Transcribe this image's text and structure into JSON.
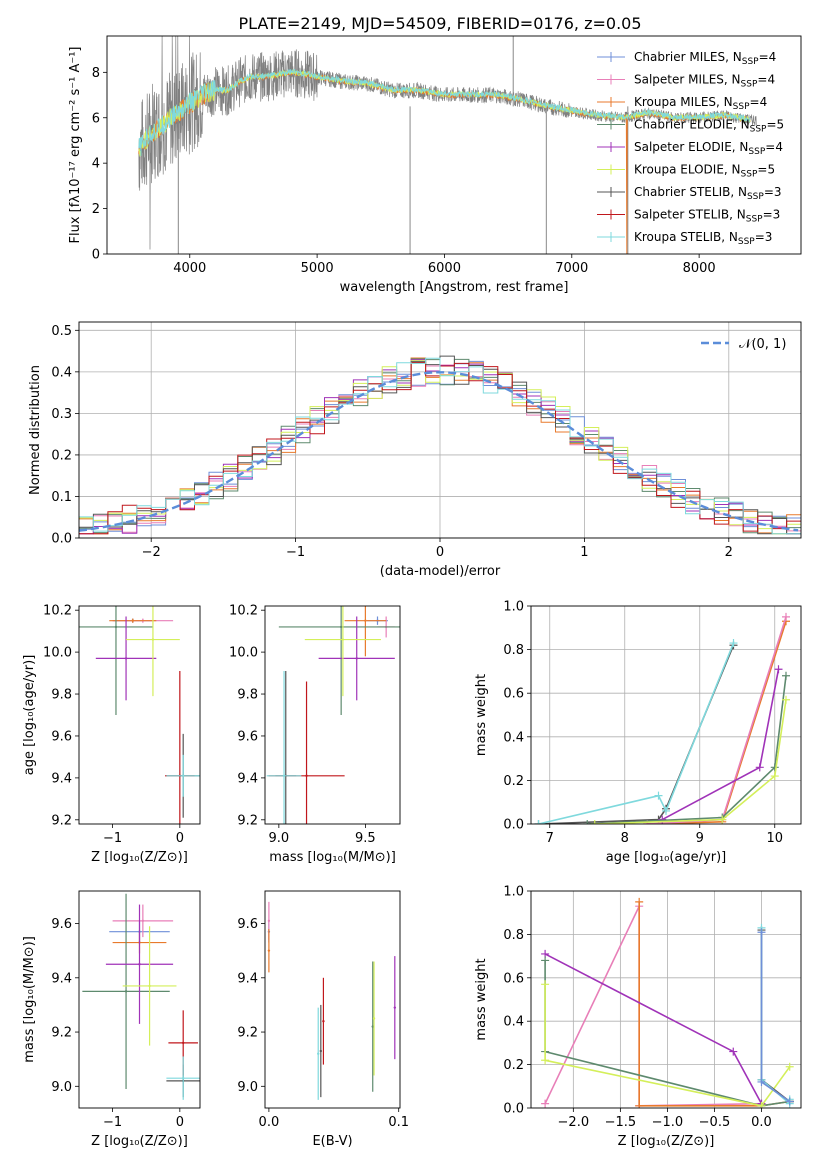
{
  "title": "PLATE=2149, MJD=54509, FIBERID=0176, z=0.05",
  "colors": {
    "grid": "#b0b0b0",
    "spectrum": "#808080",
    "gaussian": "#5b8dd9",
    "series": [
      "#6f8fd8",
      "#e87fb8",
      "#e87a2c",
      "#5e8a6e",
      "#a033b8",
      "#d4ef5a",
      "#555555",
      "#c0171c",
      "#7fd9dd"
    ]
  },
  "legend_spectrum": [
    {
      "name": "Chabrier MILES",
      "sub": "SSP",
      "n": "4",
      "color": "#6f8fd8"
    },
    {
      "name": "Salpeter MILES",
      "sub": "SSP",
      "n": "4",
      "color": "#e87fb8"
    },
    {
      "name": "Kroupa MILES",
      "sub": "SSP",
      "n": "4",
      "color": "#e87a2c"
    },
    {
      "name": "Chabrier ELODIE",
      "sub": "SSP",
      "n": "5",
      "color": "#5e8a6e"
    },
    {
      "name": "Salpeter ELODIE",
      "sub": "SSP",
      "n": "4",
      "color": "#a033b8"
    },
    {
      "name": "Kroupa ELODIE",
      "sub": "SSP",
      "n": "5",
      "color": "#d4ef5a"
    },
    {
      "name": "Chabrier STELIB",
      "sub": "SSP",
      "n": "3",
      "color": "#555555"
    },
    {
      "name": "Salpeter STELIB",
      "sub": "SSP",
      "n": "3",
      "color": "#c0171c"
    },
    {
      "name": "Kroupa STELIB",
      "sub": "SSP",
      "n": "3",
      "color": "#7fd9dd"
    }
  ],
  "legend_hist": "𝒩(0, 1)",
  "chart_data": [
    {
      "type": "line",
      "id": "spectrum",
      "xlabel": "wavelength [Angstrom, rest frame]",
      "ylabel": "Flux [fλ10⁻¹⁷ erg cm⁻² s⁻¹ A⁻¹]",
      "xlim": [
        3350,
        8800
      ],
      "ylim": [
        0,
        9.6
      ],
      "xticks": [
        4000,
        5000,
        6000,
        7000,
        8000
      ],
      "yticks": [
        0,
        2,
        4,
        6,
        8
      ],
      "model_x": [
        3600,
        3700,
        3800,
        3900,
        4000,
        4100,
        4200,
        4300,
        4400,
        4500,
        4600,
        4700,
        4800,
        4900,
        5000,
        5200,
        5400,
        5600,
        5800,
        6000,
        6200,
        6400,
        6600,
        6800,
        7000,
        7200,
        7400,
        7600,
        7800,
        8000,
        8200,
        8400
      ],
      "model_y": [
        4.6,
        5.3,
        5.7,
        6.2,
        6.6,
        7.0,
        7.2,
        7.2,
        7.6,
        7.8,
        7.8,
        7.9,
        8.0,
        7.9,
        7.8,
        7.6,
        7.5,
        7.2,
        7.2,
        7.0,
        7.0,
        7.0,
        6.8,
        6.5,
        6.3,
        6.1,
        6.0,
        6.2,
        6.0,
        6.0,
        6.1,
        5.9
      ]
    },
    {
      "type": "line",
      "id": "residuals",
      "xlabel": "(data-model)/error",
      "ylabel": "Normed distribution",
      "xlim": [
        -2.5,
        2.5
      ],
      "ylim": [
        0,
        0.52
      ],
      "xticks": [
        -2,
        -1,
        0,
        1,
        2
      ],
      "xtick_labels": [
        "−2",
        "−1",
        "0",
        "1",
        "2"
      ],
      "yticks": [
        0,
        0.1,
        0.2,
        0.3,
        0.4,
        0.5
      ],
      "ytick_labels": [
        "0.0",
        "0.1",
        "0.2",
        "0.3",
        "0.4",
        "0.5"
      ],
      "bin_width": 0.1
    },
    {
      "type": "scatter",
      "id": "age_vs_Z",
      "xlabel": "Z [log₁₀(Z/Z⊙)]",
      "ylabel": "age  [log₁₀(age/yr)]",
      "xlim": [
        -1.5,
        0.3
      ],
      "ylim": [
        9.18,
        10.22
      ],
      "xticks": [
        -1,
        0
      ],
      "xtick_labels": [
        "−1",
        "0"
      ],
      "yticks": [
        9.2,
        9.4,
        9.6,
        9.8,
        10.0,
        10.2
      ],
      "ytick_labels": [
        "9.2",
        "9.4",
        "9.6",
        "9.8",
        "10.0",
        "10.2"
      ],
      "points": [
        {
          "x": -0.7,
          "y": 10.15,
          "xe": 0.3,
          "ye": 0.01,
          "c": 0
        },
        {
          "x": -0.55,
          "y": 10.15,
          "xe": 0.45,
          "ye": 0.01,
          "c": 1
        },
        {
          "x": -0.7,
          "y": 10.15,
          "xe": 0.35,
          "ye": 0.01,
          "c": 2
        },
        {
          "x": -0.95,
          "y": 10.12,
          "xe": 0.55,
          "ye": 0.42,
          "c": 3
        },
        {
          "x": -0.8,
          "y": 9.97,
          "xe": 0.45,
          "ye": 0.2,
          "c": 4
        },
        {
          "x": -0.4,
          "y": 10.06,
          "xe": 0.4,
          "ye": 0.27,
          "c": 5
        },
        {
          "x": 0.05,
          "y": 9.41,
          "xe": 0.25,
          "ye": 0.2,
          "c": 6
        },
        {
          "x": 0.0,
          "y": 9.41,
          "xe": 0.22,
          "ye": 0.5,
          "c": 7
        },
        {
          "x": 0.05,
          "y": 9.41,
          "xe": 0.25,
          "ye": 0.1,
          "c": 8
        }
      ]
    },
    {
      "type": "scatter",
      "id": "age_vs_mass",
      "xlabel": "mass [log₁₀(M/M⊙)]",
      "ylabel": "",
      "xlim": [
        8.92,
        9.7
      ],
      "ylim": [
        9.18,
        10.22
      ],
      "xticks": [
        9.0,
        9.5
      ],
      "xtick_labels": [
        "9.0",
        "9.5"
      ],
      "yticks": [
        9.2,
        9.4,
        9.6,
        9.8,
        10.0,
        10.2
      ],
      "ytick_labels": [
        "9.2",
        "9.4",
        "9.6",
        "9.8",
        "10.0",
        "10.2"
      ],
      "points": [
        {
          "x": 9.57,
          "y": 10.15,
          "xe": 0.06,
          "ye": 0.02,
          "c": 0
        },
        {
          "x": 9.62,
          "y": 10.12,
          "xe": 0.05,
          "ye": 0.05,
          "c": 1
        },
        {
          "x": 9.5,
          "y": 10.15,
          "xe": 0.12,
          "ye": 0.17,
          "c": 2
        },
        {
          "x": 9.36,
          "y": 10.12,
          "xe": 0.36,
          "ye": 0.42,
          "c": 3
        },
        {
          "x": 9.45,
          "y": 9.97,
          "xe": 0.22,
          "ye": 0.2,
          "c": 4
        },
        {
          "x": 9.37,
          "y": 10.06,
          "xe": 0.22,
          "ye": 0.27,
          "c": 5
        },
        {
          "x": 9.04,
          "y": 9.41,
          "xe": 0.06,
          "ye": 0.5,
          "c": 6
        },
        {
          "x": 9.16,
          "y": 9.41,
          "xe": 0.22,
          "ye": 0.45,
          "c": 7
        },
        {
          "x": 9.03,
          "y": 9.41,
          "xe": 0.1,
          "ye": 0.5,
          "c": 8
        }
      ]
    },
    {
      "type": "line",
      "id": "massweight_vs_age",
      "xlabel": "age  [log₁₀(age/yr)]",
      "ylabel": "mass weight",
      "xlim": [
        6.75,
        10.35
      ],
      "ylim": [
        0,
        1
      ],
      "xticks": [
        7,
        8,
        9,
        10
      ],
      "xtick_labels": [
        "7",
        "8",
        "9",
        "10"
      ],
      "yticks": [
        0,
        0.2,
        0.4,
        0.6,
        0.8,
        1.0
      ],
      "ytick_labels": [
        "0.0",
        "0.2",
        "0.4",
        "0.6",
        "0.8",
        "1.0"
      ],
      "series": [
        {
          "c": 6,
          "x": [
            6.85,
            8.45,
            8.55,
            9.45
          ],
          "y": [
            0.0,
            0.02,
            0.07,
            0.82
          ]
        },
        {
          "c": 8,
          "x": [
            6.85,
            8.45,
            8.55,
            9.45
          ],
          "y": [
            0.0,
            0.13,
            0.06,
            0.83
          ]
        },
        {
          "c": 2,
          "x": [
            8.3,
            9.3,
            10.15
          ],
          "y": [
            0.0,
            0.01,
            0.93
          ]
        },
        {
          "c": 1,
          "x": [
            8.3,
            9.3,
            10.15
          ],
          "y": [
            0.0,
            0.02,
            0.95
          ]
        },
        {
          "c": 4,
          "x": [
            8.5,
            9.8,
            10.05
          ],
          "y": [
            0.02,
            0.26,
            0.71
          ]
        },
        {
          "c": 3,
          "x": [
            7.5,
            9.3,
            10.0,
            10.15
          ],
          "y": [
            0.0,
            0.03,
            0.26,
            0.68
          ]
        },
        {
          "c": 5,
          "x": [
            7.6,
            9.3,
            10.0,
            10.15
          ],
          "y": [
            0.0,
            0.02,
            0.22,
            0.57
          ]
        }
      ]
    },
    {
      "type": "scatter",
      "id": "mass_vs_Z",
      "xlabel": "Z [log₁₀(Z/Z⊙)]",
      "ylabel": "mass [log₁₀(M/M⊙)]",
      "xlim": [
        -1.5,
        0.3
      ],
      "ylim": [
        8.92,
        9.72
      ],
      "xticks": [
        -1,
        0
      ],
      "xtick_labels": [
        "−1",
        "0"
      ],
      "yticks": [
        9.0,
        9.2,
        9.4,
        9.6
      ],
      "ytick_labels": [
        "9.0",
        "9.2",
        "9.4",
        "9.6"
      ],
      "points": [
        {
          "x": -0.6,
          "y": 9.57,
          "xe": 0.45,
          "ye": 0.04,
          "c": 0
        },
        {
          "x": -0.55,
          "y": 9.61,
          "xe": 0.45,
          "ye": 0.06,
          "c": 1
        },
        {
          "x": -0.6,
          "y": 9.53,
          "xe": 0.4,
          "ye": 0.04,
          "c": 2
        },
        {
          "x": -0.8,
          "y": 9.35,
          "xe": 0.65,
          "ye": 0.36,
          "c": 3
        },
        {
          "x": -0.6,
          "y": 9.45,
          "xe": 0.5,
          "ye": 0.22,
          "c": 4
        },
        {
          "x": -0.45,
          "y": 9.37,
          "xe": 0.4,
          "ye": 0.22,
          "c": 5
        },
        {
          "x": 0.05,
          "y": 9.02,
          "xe": 0.25,
          "ye": 0.06,
          "c": 6
        },
        {
          "x": 0.05,
          "y": 9.16,
          "xe": 0.22,
          "ye": 0.12,
          "c": 7
        },
        {
          "x": 0.05,
          "y": 9.03,
          "xe": 0.25,
          "ye": 0.08,
          "c": 8
        }
      ]
    },
    {
      "type": "scatter",
      "id": "mass_vs_ebv",
      "xlabel": "E(B-V)",
      "ylabel": "",
      "xlim": [
        -0.003,
        0.101
      ],
      "ylim": [
        8.92,
        9.72
      ],
      "xticks": [
        0.0,
        0.1
      ],
      "xtick_labels": [
        "0.0",
        "0.1"
      ],
      "yticks": [
        9.0,
        9.2,
        9.4,
        9.6
      ],
      "ytick_labels": [
        "9.0",
        "9.2",
        "9.4",
        "9.6"
      ],
      "points": [
        {
          "x": 0.0,
          "y": 9.57,
          "xe": 0,
          "ye": 0.04,
          "c": 0
        },
        {
          "x": 0.0,
          "y": 9.61,
          "xe": 0,
          "ye": 0.07,
          "c": 1
        },
        {
          "x": 0.0,
          "y": 9.5,
          "xe": 0,
          "ye": 0.08,
          "c": 2
        },
        {
          "x": 0.08,
          "y": 9.22,
          "xe": 0,
          "ye": 0.24,
          "c": 3
        },
        {
          "x": 0.097,
          "y": 9.29,
          "xe": 0,
          "ye": 0.19,
          "c": 4
        },
        {
          "x": 0.081,
          "y": 9.25,
          "xe": 0,
          "ye": 0.21,
          "c": 5
        },
        {
          "x": 0.04,
          "y": 9.13,
          "xe": 0,
          "ye": 0.17,
          "c": 6
        },
        {
          "x": 0.042,
          "y": 9.24,
          "xe": 0,
          "ye": 0.16,
          "c": 7
        },
        {
          "x": 0.038,
          "y": 9.12,
          "xe": 0,
          "ye": 0.17,
          "c": 8
        }
      ]
    },
    {
      "type": "line",
      "id": "massweight_vs_Z",
      "xlabel": "Z [log₁₀(Z/Z⊙)]",
      "ylabel": "mass weight",
      "xlim": [
        -2.45,
        0.42
      ],
      "ylim": [
        0,
        1
      ],
      "xticks": [
        -2,
        -1.5,
        -1,
        -0.5,
        0
      ],
      "xtick_labels": [
        "−2.0",
        "−1.5",
        "−1.0",
        "−0.5",
        "0.0"
      ],
      "yticks": [
        0,
        0.2,
        0.4,
        0.6,
        0.8,
        1.0
      ],
      "ytick_labels": [
        "0.0",
        "0.2",
        "0.4",
        "0.6",
        "0.8",
        "1.0"
      ],
      "series": [
        {
          "c": 1,
          "x": [
            -2.3,
            -1.3,
            -1.3,
            0.0
          ],
          "y": [
            0.02,
            0.93,
            0.01,
            0.02
          ]
        },
        {
          "c": 2,
          "x": [
            -1.3,
            -1.3,
            0.0,
            0.3
          ],
          "y": [
            0.95,
            0.01,
            0.01,
            0.03
          ]
        },
        {
          "c": 4,
          "x": [
            -2.3,
            -0.3,
            0.0
          ],
          "y": [
            0.71,
            0.26,
            0.02
          ]
        },
        {
          "c": 3,
          "x": [
            -2.3,
            -2.3,
            0.0,
            0.3
          ],
          "y": [
            0.68,
            0.26,
            0.01,
            0.03
          ]
        },
        {
          "c": 5,
          "x": [
            -2.3,
            -2.3,
            0.0,
            0.3
          ],
          "y": [
            0.57,
            0.22,
            0.01,
            0.19
          ]
        },
        {
          "c": 6,
          "x": [
            0.0,
            0.0,
            0.3,
            0.3
          ],
          "y": [
            0.82,
            0.13,
            0.03,
            0.03
          ]
        },
        {
          "c": 8,
          "x": [
            0.0,
            0.0,
            0.3,
            0.3
          ],
          "y": [
            0.83,
            0.13,
            0.02,
            0.04
          ]
        },
        {
          "c": 0,
          "x": [
            0.0,
            0.0,
            0.3
          ],
          "y": [
            0.81,
            0.12,
            0.03
          ]
        }
      ]
    }
  ]
}
